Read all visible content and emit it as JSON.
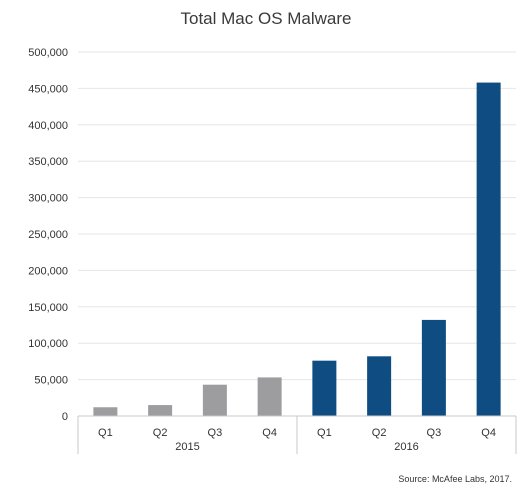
{
  "chart_data": {
    "type": "bar",
    "title": "Total Mac OS Malware",
    "source": "Source: McAfee Labs, 2017.",
    "categories": [
      "Q1",
      "Q2",
      "Q3",
      "Q4",
      "Q1",
      "Q2",
      "Q3",
      "Q4"
    ],
    "groups": [
      {
        "label": "2015",
        "count": 4,
        "color": "#9d9da0"
      },
      {
        "label": "2016",
        "count": 4,
        "color": "#0f4c81"
      }
    ],
    "values": [
      12000,
      15000,
      43000,
      53000,
      76000,
      82000,
      132000,
      458000
    ],
    "ylim": [
      0,
      500000
    ],
    "yticks": [
      0,
      50000,
      100000,
      150000,
      200000,
      250000,
      300000,
      350000,
      400000,
      450000,
      500000
    ],
    "ytick_labels": [
      "0",
      "50,000",
      "100,000",
      "150,000",
      "200,000",
      "250,000",
      "300,000",
      "350,000",
      "400,000",
      "450,000",
      "500,000"
    ],
    "grid": true,
    "gridline_color": "#e6e6e6"
  }
}
